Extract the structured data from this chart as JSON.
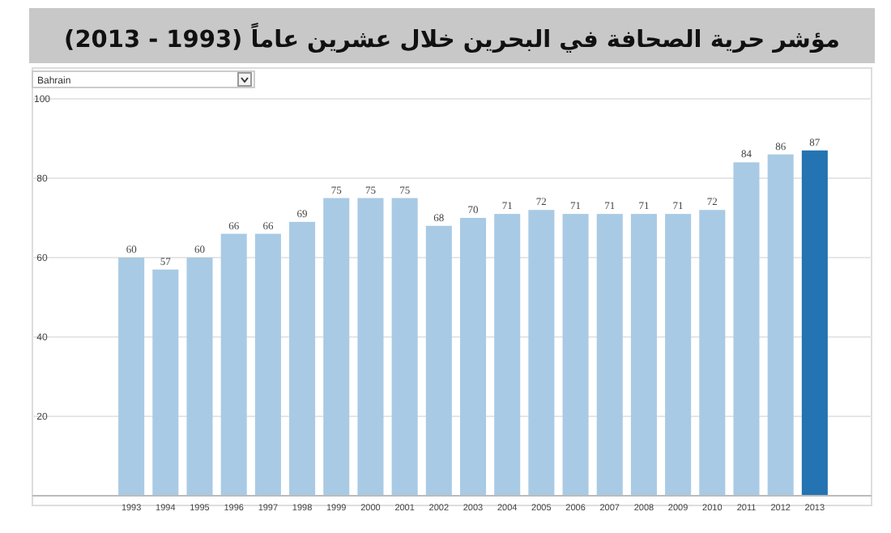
{
  "chart_data": {
    "type": "bar",
    "title": "مؤشر حرية الصحافة في البحرين خلال عشرين عاماً (1993 - 2013)",
    "annotations": [
      "Bahrain"
    ],
    "categories": [
      "1993",
      "1994",
      "1995",
      "1996",
      "1997",
      "1998",
      "1999",
      "2000",
      "2001",
      "2002",
      "2003",
      "2004",
      "2005",
      "2006",
      "2007",
      "2008",
      "2009",
      "2010",
      "2011",
      "2012",
      "2013"
    ],
    "values": [
      60,
      57,
      60,
      66,
      66,
      69,
      75,
      75,
      75,
      68,
      70,
      71,
      72,
      71,
      71,
      71,
      71,
      72,
      84,
      86,
      87
    ],
    "colors": [
      "#a9cae4",
      "#a9cae4",
      "#a9cae4",
      "#a9cae4",
      "#a9cae4",
      "#a9cae4",
      "#a9cae4",
      "#a9cae4",
      "#a9cae4",
      "#a9cae4",
      "#a9cae4",
      "#a9cae4",
      "#a9cae4",
      "#a9cae4",
      "#a9cae4",
      "#a9cae4",
      "#a9cae4",
      "#a9cae4",
      "#a9cae4",
      "#a9cae4",
      "#2473b2"
    ],
    "ylim": [
      0,
      100
    ],
    "yticks": [
      {
        "value": 0,
        "label": null
      },
      20,
      40,
      60,
      80,
      100
    ],
    "grid": "y",
    "data_labels": true
  }
}
